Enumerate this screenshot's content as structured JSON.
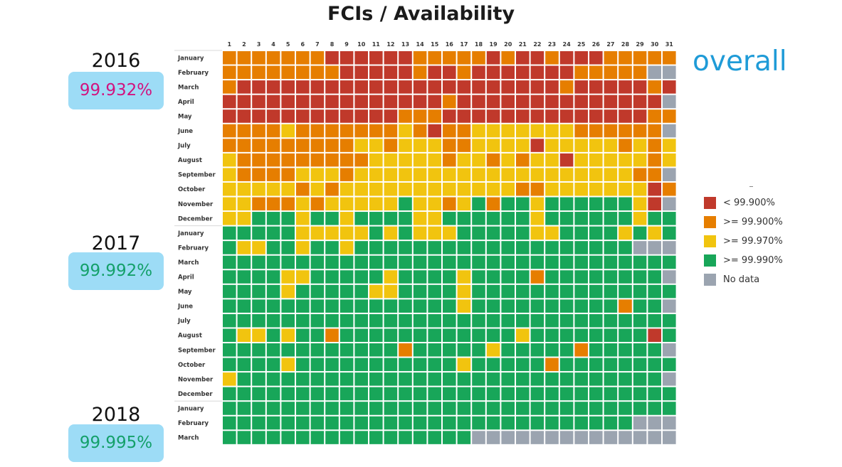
{
  "header": {
    "title": "FCIs / Availability",
    "overall_label": "overall"
  },
  "years": [
    {
      "year": "2016",
      "availability": "99.932%",
      "color": "#d2137e"
    },
    {
      "year": "2017",
      "availability": "99.992%",
      "color": "#14a06a"
    },
    {
      "year": "2018",
      "availability": "99.995%",
      "color": "#14a06a"
    }
  ],
  "colors": {
    "R": "#c0392b",
    "O": "#e67e00",
    "Y": "#f1c40f",
    "G": "#18a659",
    "N": "#9ba4b0",
    "accent": "#1f9bd7",
    "badge": "#9ddcf6"
  },
  "chart_data": {
    "type": "heatmap",
    "title": "FCIs / Availability",
    "x": [
      1,
      2,
      3,
      4,
      5,
      6,
      7,
      8,
      9,
      10,
      11,
      12,
      13,
      14,
      15,
      16,
      17,
      18,
      19,
      20,
      21,
      22,
      23,
      24,
      25,
      26,
      27,
      28,
      29,
      30,
      31
    ],
    "rows": [
      "January",
      "February",
      "March",
      "April",
      "May",
      "June",
      "July",
      "August",
      "September",
      "October",
      "November",
      "December",
      "January",
      "February",
      "March",
      "April",
      "May",
      "June",
      "July",
      "August",
      "September",
      "October",
      "November",
      "December",
      "January",
      "February",
      "March"
    ],
    "row_years": [
      "2016",
      "2016",
      "2016",
      "2016",
      "2016",
      "2016",
      "2016",
      "2016",
      "2016",
      "2016",
      "2016",
      "2016",
      "2017",
      "2017",
      "2017",
      "2017",
      "2017",
      "2017",
      "2017",
      "2017",
      "2017",
      "2017",
      "2017",
      "2017",
      "2018",
      "2018",
      "2018"
    ],
    "category_codes": {
      "R": "< 99.900%",
      "O": ">= 99.900%",
      "Y": ">= 99.970%",
      "G": ">= 99.990%",
      "N": "No data"
    },
    "cells": [
      "OOOOOOORRRRRROOOOORORRORRROOOOO",
      "OOOOOOOORRRRRORRORRRRRRROOOOONN",
      "ORRRRRRRRRRRRRRRRRRRRRRORRRRROR",
      "RRRRRRRRRRRRRRRORRRRRRRRRRRRRRN",
      "RRRRRRRRRRRROOORRRRRRRRRRRRRROO",
      "OOOOYOOOOOOOYOROOYYYYYYYOOOOOON",
      "OOOOOOOOOYYOYYYOOYYYYRYYYYYOYOY",
      "YOOOOOOOOOYYYYYOYYOYOYYRYYYYYOY",
      "YOOOOYYYOYYYYYYYYYYYYYYYYYYYOON",
      "YYYYYOYOYYYYYYYYYYYYOOYYYYYYYRO",
      "YYOOOYOYYYYYGYYOYGOGGYGGGGGGYRN",
      "YYGGGYGGYGGGGYYGGGGGGYGGGGGGYGG",
      "GGGGGYYYYYGYGYYYGGGGGYYGGGGYGYG",
      "GYYGGYGGYGGGGGGGGGGGGGGGGGGGNNN",
      "GGGGGGGGGGGGGGGGGGGGGGGGGGGGGGG",
      "GGGGYYGGGGGYGGGGYGGGGOGGGGGGGGN",
      "GGGGYGGGGGYYGGGGYGGGGGGGGGGGGGG",
      "GGGGGGGGGGGGGGGGYGGGGGGGGGGOGGN",
      "GGGGGGGGGGGGGGGGGGGGGGGGGGGGGGG",
      "GYYGYGGOGGGGGGGGGGGGYGGGGGGGGRG",
      "GGGGGGGGGGGGOGGGGGYGGGGGOGGGGGN",
      "GGGGYGGGGGGGGGGGYGGGGGOGGGGGGGG",
      "YGGGGGGGGGGGGGGGGGGGGGGGGGGGGGN",
      "GGGGGGGGGGGGGGGGGGGGGGGGGGGGGGG",
      "GGGGGGGGGGGGGGGGGGGGGGGGGGGGGGG",
      "GGGGGGGGGGGGGGGGGGGGGGGGGGGGNNN",
      "GGGGGGGGGGGGGGGGGNNNNNNNNNNNNNN"
    ],
    "legend": [
      {
        "code": "R",
        "label": "< 99.900%"
      },
      {
        "code": "O",
        "label": ">= 99.900%"
      },
      {
        "code": "Y",
        "label": ">= 99.970%"
      },
      {
        "code": "G",
        "label": ">= 99.990%"
      },
      {
        "code": "N",
        "label": "No data"
      }
    ]
  }
}
